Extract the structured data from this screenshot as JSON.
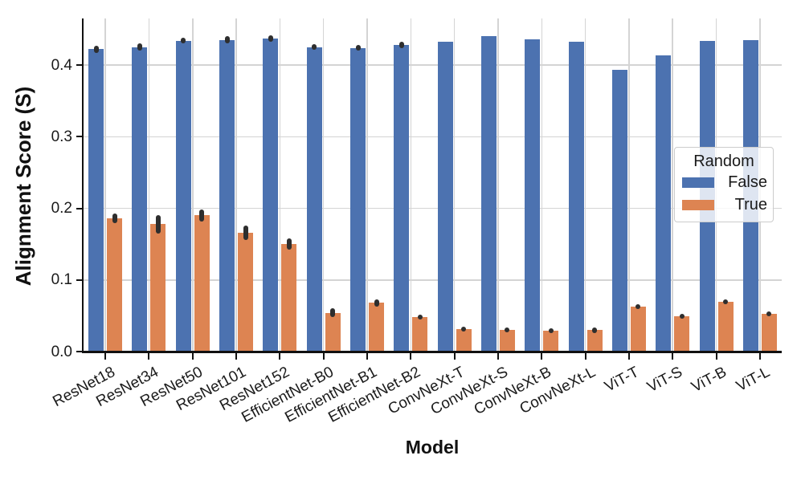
{
  "figure": {
    "ylabel": "Alignment Score (S)",
    "xlabel": "Model"
  },
  "chart_data": {
    "type": "bar",
    "title": "",
    "xlabel": "Model",
    "ylabel": "Alignment Score (S)",
    "categories": [
      "ResNet18",
      "ResNet34",
      "ResNet50",
      "ResNet101",
      "ResNet152",
      "EfficientNet-B0",
      "EfficientNet-B1",
      "EfficientNet-B2",
      "ConvNeXt-T",
      "ConvNeXt-S",
      "ConvNeXt-B",
      "ConvNeXt-L",
      "ViT-T",
      "ViT-S",
      "ViT-B",
      "ViT-L"
    ],
    "series": [
      {
        "name": "False",
        "color": "#4C72B0",
        "values": [
          0.422,
          0.425,
          0.434,
          0.435,
          0.437,
          0.425,
          0.424,
          0.428,
          0.432,
          0.44,
          0.436,
          0.433,
          0.393,
          0.414,
          0.434,
          0.435
        ],
        "errors": [
          0.005,
          0.005,
          0.004,
          0.005,
          0.005,
          0.004,
          0.004,
          0.004,
          0,
          0,
          0,
          0,
          0,
          0,
          0,
          0
        ]
      },
      {
        "name": "True",
        "color": "#DD8452",
        "values": [
          0.186,
          0.178,
          0.19,
          0.166,
          0.15,
          0.054,
          0.068,
          0.048,
          0.031,
          0.03,
          0.029,
          0.03,
          0.063,
          0.049,
          0.07,
          0.053
        ],
        "errors": [
          0.007,
          0.013,
          0.008,
          0.01,
          0.008,
          0.006,
          0.005,
          0.003,
          0.003,
          0.003,
          0.002,
          0.004,
          0.003,
          0.003,
          0.003,
          0.002
        ]
      }
    ],
    "ylim": [
      0,
      0.465
    ],
    "yticks": [
      "0.0",
      "0.1",
      "0.2",
      "0.3",
      "0.4"
    ],
    "grid": true,
    "error_color": "#2e2e2e",
    "legend": {
      "title": "Random",
      "position": "center right",
      "entries": [
        {
          "label": "False",
          "color": "#4C72B0"
        },
        {
          "label": "True",
          "color": "#DD8452"
        }
      ]
    }
  }
}
